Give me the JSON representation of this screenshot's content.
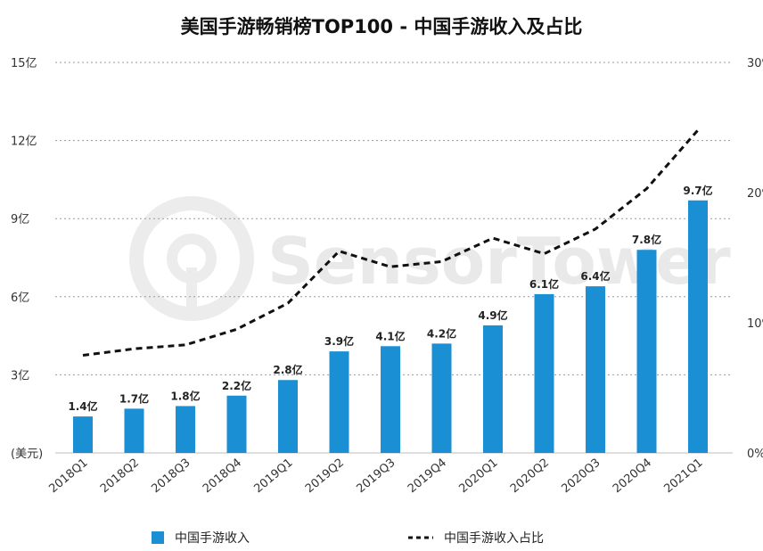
{
  "chart_data": {
    "type": "bar",
    "title": "美国手游畅销榜TOP100 - 中国手游收入及占比",
    "categories": [
      "2018Q1",
      "2018Q2",
      "2018Q3",
      "2018Q4",
      "2019Q1",
      "2019Q2",
      "2019Q3",
      "2019Q4",
      "2020Q1",
      "2020Q2",
      "2020Q3",
      "2020Q4",
      "2021Q1"
    ],
    "series": [
      {
        "name": "中国手游收入",
        "kind": "bar",
        "axis": "left",
        "color": "#1a8fd4",
        "values": [
          1.4,
          1.7,
          1.8,
          2.2,
          2.8,
          3.9,
          4.1,
          4.2,
          4.9,
          6.1,
          6.4,
          7.8,
          9.7
        ],
        "labels": [
          "1.4亿",
          "1.7亿",
          "1.8亿",
          "2.2亿",
          "2.8亿",
          "3.9亿",
          "4.1亿",
          "4.2亿",
          "4.9亿",
          "6.1亿",
          "6.4亿",
          "7.8亿",
          "9.7亿"
        ]
      },
      {
        "name": "中国手游收入占比",
        "kind": "line",
        "axis": "right",
        "style": "dashed",
        "color": "#111111",
        "values": [
          7.5,
          8.0,
          8.3,
          9.5,
          11.5,
          15.5,
          14.3,
          14.7,
          16.5,
          15.3,
          17.2,
          20.3,
          24.8
        ]
      }
    ],
    "y_left": {
      "ylim": [
        0,
        15
      ],
      "ticks": [
        0,
        3,
        6,
        9,
        12,
        15
      ],
      "tick_labels": [
        "(美元)",
        "3亿",
        "6亿",
        "9亿",
        "12亿",
        "15亿"
      ]
    },
    "y_right": {
      "ylim": [
        0,
        30
      ],
      "ticks": [
        0,
        10,
        20,
        30
      ],
      "tick_labels": [
        "0%",
        "10%",
        "20%",
        "30%"
      ]
    },
    "grid": true,
    "legend_position": "bottom"
  },
  "watermark": {
    "text": "SensorTower"
  }
}
